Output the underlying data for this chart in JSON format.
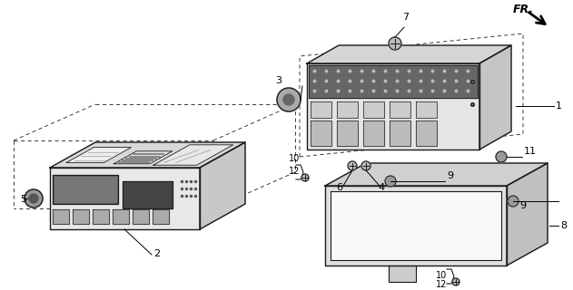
{
  "bg_color": "#ffffff",
  "line_color": "#1a1a1a",
  "fill_light": "#f0f0f0",
  "fill_mid": "#d8d8d8",
  "fill_dark": "#b8b8b8",
  "fill_very_dark": "#888888"
}
